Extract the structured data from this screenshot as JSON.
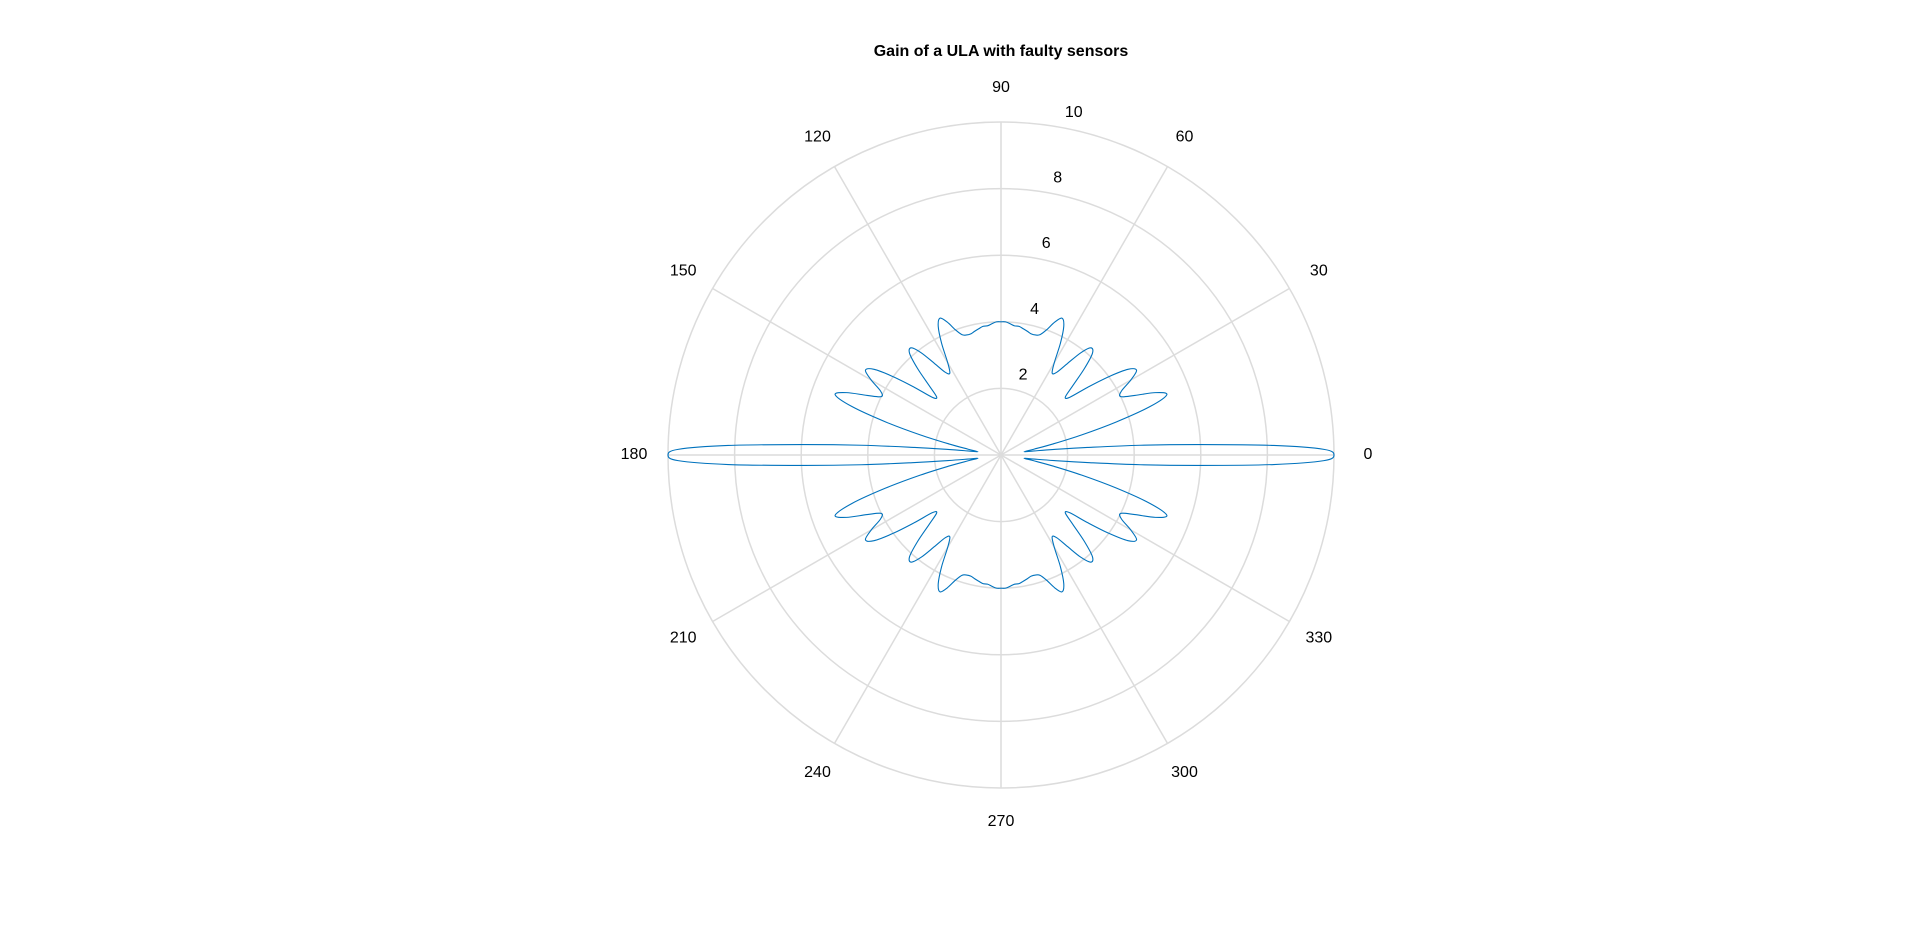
{
  "chart_data": {
    "type": "line",
    "coordinate_system": "polar",
    "title": "Gain of a ULA with faulty sensors",
    "theta_unit": "degrees",
    "theta_ticks": [
      0,
      30,
      60,
      90,
      120,
      150,
      180,
      210,
      240,
      270,
      300,
      330
    ],
    "theta_tick_labels": [
      "0",
      "30",
      "60",
      "90",
      "120",
      "150",
      "180",
      "210",
      "240",
      "270",
      "300",
      "330"
    ],
    "r_ticks": [
      2,
      4,
      6,
      8,
      10
    ],
    "r_tick_labels": [
      "2",
      "4",
      "6",
      "8",
      "10"
    ],
    "rlim": [
      0,
      10
    ],
    "grid": true,
    "series": [
      {
        "color": "#0072BD",
        "theta": [
          0,
          1,
          2,
          3,
          4,
          5,
          6,
          7,
          8,
          10,
          12,
          14,
          16,
          18,
          20,
          22,
          24,
          26,
          28,
          30,
          32,
          34,
          36,
          38,
          40,
          42,
          44,
          46,
          48,
          50,
          52,
          54,
          56,
          58,
          60,
          62,
          64,
          66,
          68,
          70,
          72,
          74,
          76,
          78,
          80,
          82,
          84,
          86,
          88,
          90
        ],
        "r": [
          10.0,
          9.7,
          8.2,
          6.0,
          4.2,
          2.6,
          1.6,
          1.0,
          0.7,
          1.0,
          1.6,
          2.5,
          3.6,
          4.7,
          5.3,
          5.0,
          4.4,
          4.0,
          4.1,
          4.5,
          4.8,
          4.6,
          4.0,
          3.3,
          2.7,
          2.6,
          3.0,
          3.6,
          4.1,
          4.2,
          3.9,
          3.4,
          3.0,
          2.9,
          3.2,
          3.8,
          4.3,
          4.5,
          4.3,
          4.0,
          3.8,
          3.75,
          3.75,
          3.8,
          3.85,
          3.9,
          3.9,
          3.95,
          4.0,
          4.0
        ]
      }
    ]
  }
}
